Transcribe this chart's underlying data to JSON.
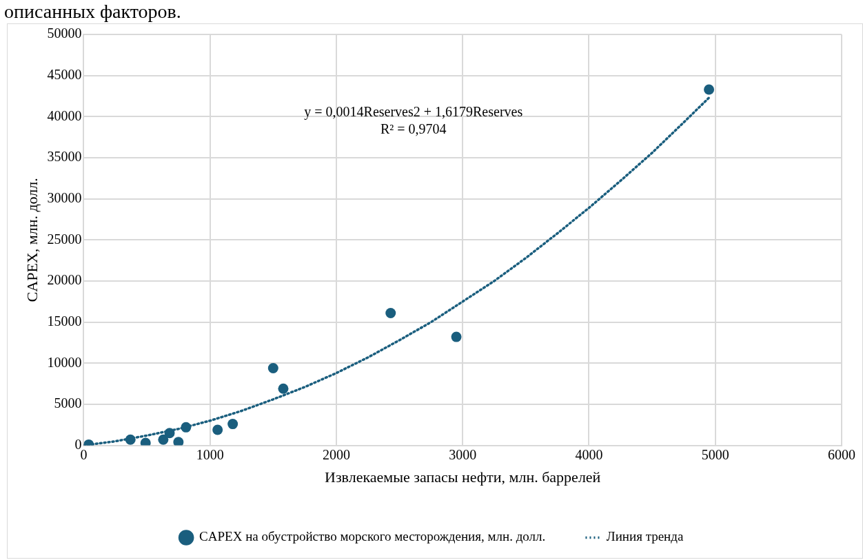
{
  "chart_data": {
    "type": "scatter",
    "xlabel": "Извлекаемые запасы нефти, млн. баррелей",
    "ylabel": "CAPEX, млн. долл.",
    "annotations": [
      "описанных факторов.",
      "y = 0,0014Reserves2 + 1,6179Reserves",
      "R² = 0,9704"
    ],
    "xlim": [
      0,
      6000
    ],
    "xticks": [
      0,
      1000,
      2000,
      3000,
      4000,
      5000,
      6000
    ],
    "ylim": [
      0,
      50000
    ],
    "yticks": [
      0,
      5000,
      10000,
      15000,
      20000,
      25000,
      30000,
      35000,
      40000,
      45000,
      50000
    ],
    "grid": true,
    "legend": "bottom",
    "series": [
      {
        "name": "CAPEX на обустройство морского месторождения, млн. долл.",
        "type": "scatter",
        "marker": "circle",
        "color": "#1a5e7e",
        "x": [
          40,
          370,
          490,
          630,
          680,
          750,
          810,
          1060,
          1180,
          1500,
          1580,
          2430,
          2950,
          4950
        ],
        "values": [
          100,
          700,
          300,
          700,
          1500,
          400,
          2200,
          1900,
          2600,
          9400,
          6900,
          16100,
          13200,
          43300
        ]
      },
      {
        "name": "Линия тренда",
        "type": "line",
        "marker": "none",
        "line_style": "dotted",
        "color": "#1a5e7e",
        "x": [
          0,
          250,
          500,
          750,
          1000,
          1250,
          1500,
          1750,
          2000,
          2250,
          2500,
          2750,
          3000,
          3250,
          3500,
          3750,
          4000,
          4250,
          4500,
          4750,
          4950
        ],
        "values": [
          0,
          500,
          1200,
          2000,
          3000,
          4200,
          5600,
          7100,
          8800,
          10700,
          12800,
          15000,
          17500,
          20000,
          22800,
          25800,
          28900,
          32200,
          35600,
          39300,
          42300
        ]
      }
    ]
  }
}
